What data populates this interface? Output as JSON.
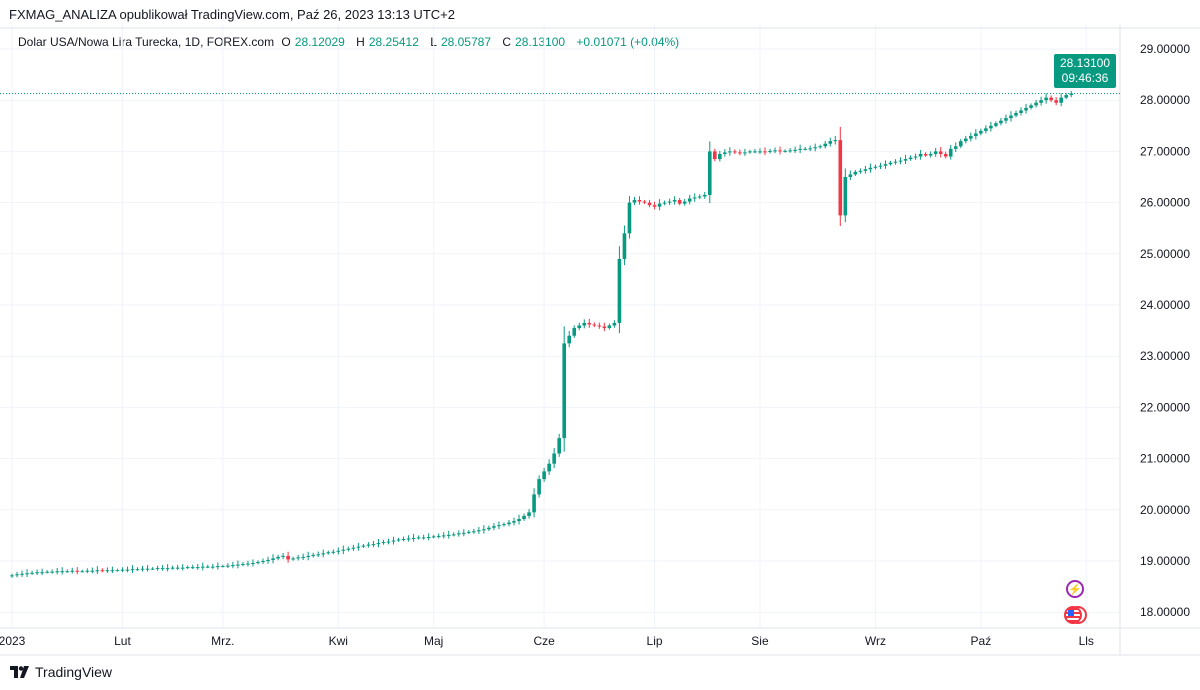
{
  "header": {
    "published": "FXMAG_ANALIZA opublikował TradingView.com, Paź 26, 2023 13:13 UTC+2"
  },
  "legend": {
    "symbol": "Dolar USA/Nowa Lira Turecka, 1D, FOREX.com",
    "o_label": "O",
    "o": "28.12029",
    "h_label": "H",
    "h": "28.25412",
    "l_label": "L",
    "l": "28.05787",
    "c_label": "C",
    "c": "28.13100",
    "change": "+0.01071 (+0.04%)"
  },
  "price_tag": {
    "price": "28.13100",
    "countdown": "09:46:36"
  },
  "footer": {
    "brand": "TradingView"
  },
  "colors": {
    "up": "#089981",
    "down": "#f23645",
    "grid": "#f0f3fa"
  },
  "chart_data": {
    "type": "candlestick",
    "title": "Dolar USA/Nowa Lira Turecka, 1D, FOREX.com",
    "ylim": [
      17.65,
      29.4
    ],
    "y_ticks": [
      "29.00000",
      "28.00000",
      "27.00000",
      "26.00000",
      "25.00000",
      "24.00000",
      "23.00000",
      "22.00000",
      "21.00000",
      "20.00000",
      "19.00000",
      "18.00000"
    ],
    "x_ticks": [
      {
        "label": "2023",
        "index": 0
      },
      {
        "label": "Lut",
        "index": 22
      },
      {
        "label": "Mrz.",
        "index": 42
      },
      {
        "label": "Kwi",
        "index": 65
      },
      {
        "label": "Maj",
        "index": 84
      },
      {
        "label": "Cze",
        "index": 106
      },
      {
        "label": "Lip",
        "index": 128
      },
      {
        "label": "Sie",
        "index": 149
      },
      {
        "label": "Wrz",
        "index": 172
      },
      {
        "label": "Paź",
        "index": 193
      },
      {
        "label": "Lls",
        "index": 214
      }
    ],
    "start_open": 18.7,
    "closes": [
      18.72,
      18.74,
      18.75,
      18.76,
      18.77,
      18.78,
      18.78,
      18.79,
      18.79,
      18.8,
      18.8,
      18.8,
      18.81,
      18.8,
      18.8,
      18.81,
      18.81,
      18.82,
      18.81,
      18.82,
      18.82,
      18.82,
      18.83,
      18.83,
      18.84,
      18.84,
      18.85,
      18.85,
      18.85,
      18.86,
      18.86,
      18.86,
      18.87,
      18.87,
      18.87,
      18.88,
      18.88,
      18.88,
      18.89,
      18.89,
      18.89,
      18.9,
      18.9,
      18.91,
      18.92,
      18.93,
      18.94,
      18.95,
      18.96,
      18.98,
      19.0,
      19.02,
      19.05,
      19.08,
      19.1,
      19.03,
      19.05,
      19.07,
      19.08,
      19.1,
      19.12,
      19.13,
      19.15,
      19.17,
      19.18,
      19.2,
      19.22,
      19.24,
      19.26,
      19.28,
      19.3,
      19.32,
      19.33,
      19.35,
      19.37,
      19.38,
      19.4,
      19.42,
      19.43,
      19.44,
      19.45,
      19.46,
      19.46,
      19.47,
      19.48,
      19.49,
      19.5,
      19.51,
      19.52,
      19.54,
      19.55,
      19.57,
      19.58,
      19.6,
      19.62,
      19.65,
      19.68,
      19.7,
      19.72,
      19.75,
      19.78,
      19.82,
      19.88,
      19.95,
      20.3,
      20.6,
      20.75,
      20.9,
      21.1,
      21.4,
      23.25,
      23.4,
      23.55,
      23.6,
      23.65,
      23.62,
      23.6,
      23.58,
      23.55,
      23.6,
      23.65,
      24.9,
      25.4,
      26.0,
      26.05,
      26.02,
      26.0,
      25.95,
      25.92,
      25.98,
      26.0,
      26.02,
      26.05,
      25.98,
      26.02,
      26.08,
      26.1,
      26.12,
      26.15,
      27.0,
      26.85,
      26.95,
      26.98,
      27.0,
      26.98,
      26.97,
      26.98,
      27.0,
      27.0,
      27.0,
      26.99,
      27.01,
      27.02,
      27.0,
      27.01,
      27.02,
      27.03,
      27.05,
      27.05,
      27.06,
      27.08,
      27.1,
      27.15,
      27.2,
      27.22,
      25.75,
      26.5,
      26.55,
      26.6,
      26.62,
      26.65,
      26.68,
      26.7,
      26.72,
      26.75,
      26.78,
      26.8,
      26.82,
      26.85,
      26.88,
      26.9,
      26.95,
      26.92,
      26.95,
      27.0,
      26.95,
      26.9,
      27.05,
      27.1,
      27.2,
      27.25,
      27.3,
      27.35,
      27.4,
      27.45,
      27.5,
      27.55,
      27.6,
      27.65,
      27.7,
      27.75,
      27.8,
      27.85,
      27.9,
      27.95,
      28.0,
      28.05,
      28.0,
      27.95,
      28.05,
      28.1,
      28.13
    ],
    "last_price": 28.131
  }
}
